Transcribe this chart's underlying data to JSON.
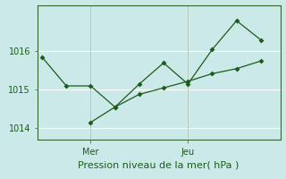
{
  "xlabel": "Pression niveau de la mer( hPa )",
  "background_color": "#cce9e9",
  "line_color": "#1a5c1a",
  "grid_color": "#ffffff",
  "spine_color": "#336633",
  "day_labels": [
    "Mer",
    "Jeu"
  ],
  "day_positions": [
    2,
    6
  ],
  "ylim": [
    1013.7,
    1017.2
  ],
  "yticks": [
    1014,
    1015,
    1016
  ],
  "xlim": [
    -0.2,
    9.8
  ],
  "line1_x": [
    0,
    1,
    2,
    3,
    4,
    5,
    6,
    7,
    8,
    9
  ],
  "line1_y": [
    1015.85,
    1015.1,
    1015.1,
    1014.55,
    1015.15,
    1015.7,
    1015.15,
    1016.05,
    1016.8,
    1016.3
  ],
  "line2_x": [
    2,
    3,
    4,
    5,
    6,
    7,
    8,
    9
  ],
  "line2_y": [
    1014.15,
    1014.55,
    1014.88,
    1015.05,
    1015.22,
    1015.42,
    1015.55,
    1015.75
  ],
  "xlabel_fontsize": 8,
  "tick_labelsize": 7,
  "marker_size": 3
}
